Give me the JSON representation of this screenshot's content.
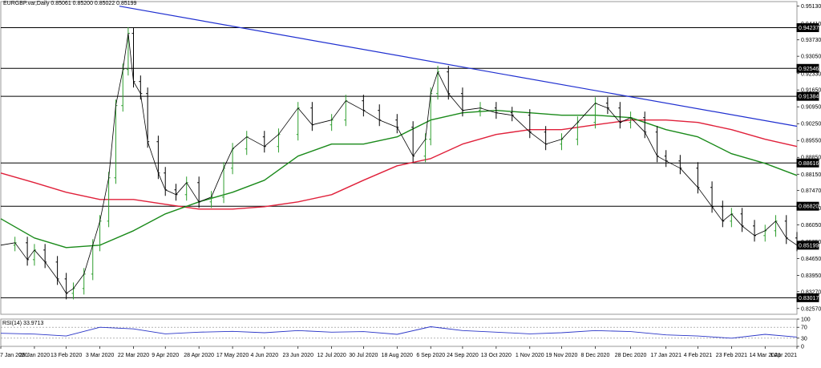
{
  "header": {
    "symbol": "EURGBP.var,Daily",
    "ohlc": "0.85061 0.85200 0.85022 0.85199"
  },
  "rsi_panel": {
    "label": "RSI(14) 33.9713",
    "levels": [
      "100",
      "70",
      "30",
      "0"
    ]
  },
  "colors": {
    "price_up": "#2e9e2e",
    "price_down": "#000000",
    "ma_fast": "#1a8a1a",
    "ma_slow": "#e0203a",
    "trendline": "#1f2fd0",
    "horizontal_levels": "#000000",
    "rsi_line": "#2a35c8",
    "grid": "#000000"
  },
  "chart_data": {
    "type": "line",
    "title": "",
    "xlabel": "",
    "ylabel": "",
    "ylim": [
      0.8233,
      0.9532
    ],
    "x_ticks": [
      "7 Jan 2020",
      "26 Jan 2020",
      "13 Feb 2020",
      "3 Mar 2020",
      "22 Mar 2020",
      "9 Apr 2020",
      "28 Apr 2020",
      "17 May 2020",
      "4 Jun 2020",
      "23 Jun 2020",
      "12 Jul 2020",
      "30 Jul 2020",
      "18 Aug 2020",
      "6 Sep 2020",
      "24 Sep 2020",
      "13 Oct 2020",
      "1 Nov 2020",
      "19 Nov 2020",
      "8 Dec 2020",
      "28 Dec 2020",
      "17 Jan 2021",
      "4 Feb 2021",
      "23 Feb 2021",
      "14 Mar 2021",
      "1 Apr 2021"
    ],
    "y_ticks": [
      "0.95130",
      "0.94410",
      "0.93730",
      "0.93050",
      "0.92330",
      "0.91650",
      "0.90950",
      "0.90250",
      "0.89550",
      "0.88850",
      "0.88150",
      "0.87470",
      "0.86750",
      "0.86050",
      "0.85350",
      "0.84650",
      "0.83950",
      "0.83270",
      "0.82570"
    ],
    "level_labels": [
      "0.94237",
      "0.92546",
      "0.91384",
      "0.88616",
      "0.86820",
      "0.85199",
      "0.83017"
    ],
    "horizontal_levels": [
      0.94237,
      0.92546,
      0.91384,
      0.88616,
      0.8682,
      0.83017
    ],
    "current_price": 0.85199,
    "trendline": [
      {
        "date": "14 Mar 2020",
        "value": 0.9513
      },
      {
        "date": "1 Apr 2021",
        "value": 0.9014
      }
    ],
    "series": [
      {
        "name": "",
        "kind": "close",
        "values": [
          [
            "7 Jan 2020",
            0.852
          ],
          [
            "15 Jan 2020",
            0.853
          ],
          [
            "22 Jan 2020",
            0.846
          ],
          [
            "26 Jan 2020",
            0.85
          ],
          [
            "1 Feb 2020",
            0.845
          ],
          [
            "8 Feb 2020",
            0.838
          ],
          [
            "13 Feb 2020",
            0.832
          ],
          [
            "17 Feb 2020",
            0.834
          ],
          [
            "23 Feb 2020",
            0.84
          ],
          [
            "28 Feb 2020",
            0.852
          ],
          [
            "3 Mar 2020",
            0.862
          ],
          [
            "8 Mar 2020",
            0.88
          ],
          [
            "12 Mar 2020",
            0.91
          ],
          [
            "16 Mar 2020",
            0.925
          ],
          [
            "19 Mar 2020",
            0.94
          ],
          [
            "22 Mar 2020",
            0.92
          ],
          [
            "26 Mar 2020",
            0.915
          ],
          [
            "30 Mar 2020",
            0.895
          ],
          [
            "5 Apr 2020",
            0.882
          ],
          [
            "9 Apr 2020",
            0.875
          ],
          [
            "15 Apr 2020",
            0.873
          ],
          [
            "21 Apr 2020",
            0.878
          ],
          [
            "28 Apr 2020",
            0.87
          ],
          [
            "5 May 2020",
            0.872
          ],
          [
            "12 May 2020",
            0.884
          ],
          [
            "17 May 2020",
            0.892
          ],
          [
            "25 May 2020",
            0.897
          ],
          [
            "4 Jun 2020",
            0.893
          ],
          [
            "12 Jun 2020",
            0.898
          ],
          [
            "23 Jun 2020",
            0.909
          ],
          [
            "1 Jul 2020",
            0.902
          ],
          [
            "12 Jul 2020",
            0.904
          ],
          [
            "20 Jul 2020",
            0.912
          ],
          [
            "30 Jul 2020",
            0.908
          ],
          [
            "8 Aug 2020",
            0.904
          ],
          [
            "18 Aug 2020",
            0.901
          ],
          [
            "27 Aug 2020",
            0.889
          ],
          [
            "3 Sep 2020",
            0.896
          ],
          [
            "6 Sep 2020",
            0.915
          ],
          [
            "10 Sep 2020",
            0.924
          ],
          [
            "16 Sep 2020",
            0.915
          ],
          [
            "24 Sep 2020",
            0.908
          ],
          [
            "4 Oct 2020",
            0.909
          ],
          [
            "13 Oct 2020",
            0.907
          ],
          [
            "22 Oct 2020",
            0.906
          ],
          [
            "1 Nov 2020",
            0.899
          ],
          [
            "10 Nov 2020",
            0.894
          ],
          [
            "19 Nov 2020",
            0.896
          ],
          [
            "28 Nov 2020",
            0.903
          ],
          [
            "8 Dec 2020",
            0.911
          ],
          [
            "15 Dec 2020",
            0.909
          ],
          [
            "22 Dec 2020",
            0.903
          ],
          [
            "28 Dec 2020",
            0.905
          ],
          [
            "5 Jan 2021",
            0.899
          ],
          [
            "12 Jan 2021",
            0.889
          ],
          [
            "17 Jan 2021",
            0.887
          ],
          [
            "25 Jan 2021",
            0.884
          ],
          [
            "4 Feb 2021",
            0.876
          ],
          [
            "12 Feb 2021",
            0.868
          ],
          [
            "18 Feb 2021",
            0.862
          ],
          [
            "23 Feb 2021",
            0.865
          ],
          [
            "1 Mar 2021",
            0.86
          ],
          [
            "8 Mar 2021",
            0.856
          ],
          [
            "14 Mar 2021",
            0.858
          ],
          [
            "20 Mar 2021",
            0.862
          ],
          [
            "26 Mar 2021",
            0.855
          ],
          [
            "1 Apr 2021",
            0.852
          ]
        ]
      },
      {
        "name": "",
        "kind": "moving-average-fast",
        "values": [
          [
            "7 Jan 2020",
            0.863
          ],
          [
            "26 Jan 2020",
            0.855
          ],
          [
            "13 Feb 2020",
            0.851
          ],
          [
            "3 Mar 2020",
            0.852
          ],
          [
            "22 Mar 2020",
            0.858
          ],
          [
            "9 Apr 2020",
            0.865
          ],
          [
            "28 Apr 2020",
            0.87
          ],
          [
            "17 May 2020",
            0.874
          ],
          [
            "4 Jun 2020",
            0.879
          ],
          [
            "23 Jun 2020",
            0.889
          ],
          [
            "12 Jul 2020",
            0.894
          ],
          [
            "30 Jul 2020",
            0.894
          ],
          [
            "18 Aug 2020",
            0.897
          ],
          [
            "6 Sep 2020",
            0.904
          ],
          [
            "24 Sep 2020",
            0.907
          ],
          [
            "13 Oct 2020",
            0.908
          ],
          [
            "1 Nov 2020",
            0.907
          ],
          [
            "19 Nov 2020",
            0.906
          ],
          [
            "8 Dec 2020",
            0.906
          ],
          [
            "28 Dec 2020",
            0.905
          ],
          [
            "17 Jan 2021",
            0.9
          ],
          [
            "4 Feb 2021",
            0.897
          ],
          [
            "23 Feb 2021",
            0.89
          ],
          [
            "14 Mar 2021",
            0.886
          ],
          [
            "1 Apr 2021",
            0.881
          ]
        ]
      },
      {
        "name": "",
        "kind": "moving-average-slow",
        "values": [
          [
            "7 Jan 2020",
            0.882
          ],
          [
            "26 Jan 2020",
            0.878
          ],
          [
            "13 Feb 2020",
            0.874
          ],
          [
            "3 Mar 2020",
            0.871
          ],
          [
            "22 Mar 2020",
            0.871
          ],
          [
            "9 Apr 2020",
            0.869
          ],
          [
            "28 Apr 2020",
            0.867
          ],
          [
            "17 May 2020",
            0.867
          ],
          [
            "4 Jun 2020",
            0.868
          ],
          [
            "23 Jun 2020",
            0.87
          ],
          [
            "12 Jul 2020",
            0.873
          ],
          [
            "30 Jul 2020",
            0.879
          ],
          [
            "18 Aug 2020",
            0.885
          ],
          [
            "6 Sep 2020",
            0.888
          ],
          [
            "24 Sep 2020",
            0.894
          ],
          [
            "13 Oct 2020",
            0.898
          ],
          [
            "1 Nov 2020",
            0.9
          ],
          [
            "19 Nov 2020",
            0.9
          ],
          [
            "8 Dec 2020",
            0.902
          ],
          [
            "28 Dec 2020",
            0.904
          ],
          [
            "17 Jan 2021",
            0.904
          ],
          [
            "4 Feb 2021",
            0.903
          ],
          [
            "23 Feb 2021",
            0.9
          ],
          [
            "14 Mar 2021",
            0.896
          ],
          [
            "1 Apr 2021",
            0.893
          ]
        ]
      }
    ],
    "rsi": {
      "ylim": [
        0,
        100
      ],
      "levels": [
        70,
        30
      ],
      "values": [
        [
          "7 Jan 2020",
          48
        ],
        [
          "26 Jan 2020",
          45
        ],
        [
          "13 Feb 2020",
          38
        ],
        [
          "3 Mar 2020",
          70
        ],
        [
          "22 Mar 2020",
          64
        ],
        [
          "9 Apr 2020",
          46
        ],
        [
          "28 Apr 2020",
          52
        ],
        [
          "17 May 2020",
          55
        ],
        [
          "4 Jun 2020",
          50
        ],
        [
          "23 Jun 2020",
          58
        ],
        [
          "12 Jul 2020",
          52
        ],
        [
          "30 Jul 2020",
          54
        ],
        [
          "18 Aug 2020",
          44
        ],
        [
          "6 Sep 2020",
          72
        ],
        [
          "24 Sep 2020",
          58
        ],
        [
          "13 Oct 2020",
          52
        ],
        [
          "1 Nov 2020",
          46
        ],
        [
          "19 Nov 2020",
          50
        ],
        [
          "8 Dec 2020",
          58
        ],
        [
          "28 Dec 2020",
          54
        ],
        [
          "17 Jan 2021",
          42
        ],
        [
          "4 Feb 2021",
          38
        ],
        [
          "23 Feb 2021",
          30
        ],
        [
          "14 Mar 2021",
          44
        ],
        [
          "1 Apr 2021",
          34
        ]
      ]
    }
  }
}
